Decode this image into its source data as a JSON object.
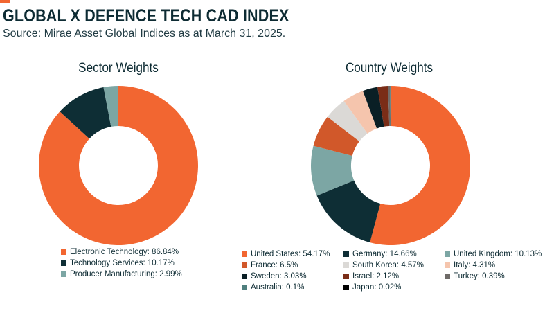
{
  "header": {
    "title": "GLOBAL X DEFENCE TECH CAD INDEX",
    "subtitle": "Source: Mirae Asset Global Indices as at March 31, 2025."
  },
  "colors": {
    "accent": "#f26631"
  },
  "chart_data": [
    {
      "type": "pie",
      "style": "donut",
      "title": "Sector Weights",
      "legend_position": "bottom",
      "slices": [
        {
          "label": "Electronic Technology",
          "value": 86.84,
          "legend_text": "Electronic Technology: 86.84%",
          "color": "#f26631"
        },
        {
          "label": "Technology Services",
          "value": 10.17,
          "legend_text": "Technology Services: 10.17%",
          "color": "#0e2e35"
        },
        {
          "label": "Producer Manufacturing",
          "value": 2.99,
          "legend_text": "Producer Manufacturing: 2.99%",
          "color": "#7ca6a4"
        }
      ]
    },
    {
      "type": "pie",
      "style": "donut",
      "title": "Country Weights",
      "legend_position": "bottom",
      "slices": [
        {
          "label": "United States",
          "value": 54.17,
          "legend_text": "United States: 54.17%",
          "color": "#f26631"
        },
        {
          "label": "Germany",
          "value": 14.66,
          "legend_text": "Germany: 14.66%",
          "color": "#0e2e35"
        },
        {
          "label": "United Kingdom",
          "value": 10.13,
          "legend_text": "United Kingdom: 10.13%",
          "color": "#7ca6a4"
        },
        {
          "label": "France",
          "value": 6.5,
          "legend_text": "France: 6.5%",
          "color": "#d1582a"
        },
        {
          "label": "South Korea",
          "value": 4.57,
          "legend_text": "South Korea: 4.57%",
          "color": "#dbd9d6"
        },
        {
          "label": "Italy",
          "value": 4.31,
          "legend_text": "Italy: 4.31%",
          "color": "#f5c5ad"
        },
        {
          "label": "Sweden",
          "value": 3.03,
          "legend_text": "Sweden: 3.03%",
          "color": "#0a1f25"
        },
        {
          "label": "Israel",
          "value": 2.12,
          "legend_text": "Israel: 2.12%",
          "color": "#7a2d17"
        },
        {
          "label": "Turkey",
          "value": 0.39,
          "legend_text": "Turkey: 0.39%",
          "color": "#6f6b68"
        },
        {
          "label": "Australia",
          "value": 0.1,
          "legend_text": "Australia: 0.1%",
          "color": "#4f7f7e"
        },
        {
          "label": "Japan",
          "value": 0.02,
          "legend_text": "Japan: 0.02%",
          "color": "#000000"
        }
      ]
    }
  ]
}
